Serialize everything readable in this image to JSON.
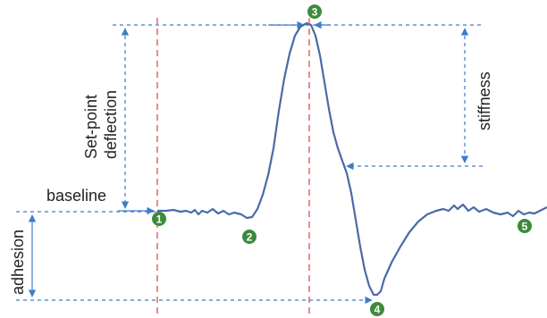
{
  "labels": {
    "setpoint_line1": "Set-point",
    "setpoint_line2": "deflection",
    "baseline": "baseline",
    "adhesion": "adhesion",
    "stiffness": "stiffness"
  },
  "markers": [
    "1",
    "2",
    "3",
    "4",
    "5"
  ],
  "colors": {
    "curve": "#4a6aa6",
    "arrow": "#3d7cc9",
    "redline": "#e06666",
    "badge": "#3d8a3d"
  }
}
